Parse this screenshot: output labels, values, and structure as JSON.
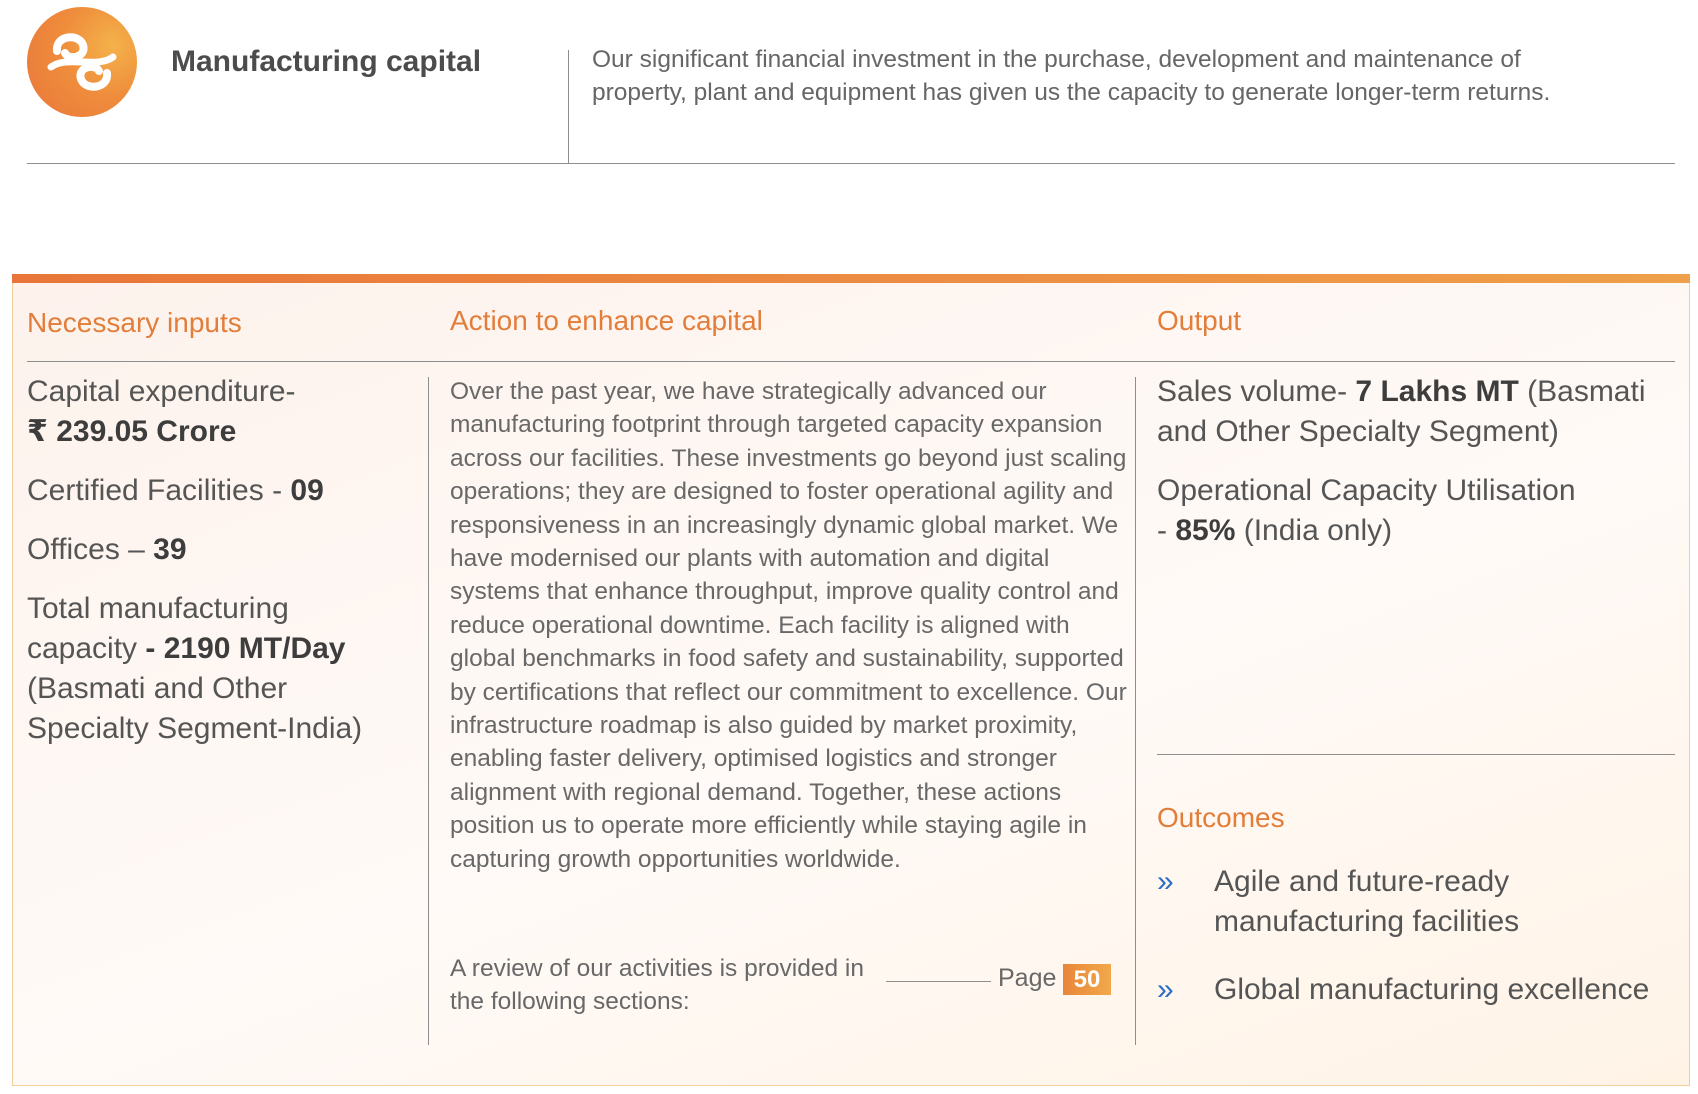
{
  "header": {
    "title": "Manufacturing capital",
    "description": "Our significant financial investment in the purchase, development and maintenance of property, plant and equipment has given us the capacity to generate longer-term returns.",
    "logo_icon": "capital-logo-icon"
  },
  "colors": {
    "accent": "#e27d3a",
    "accent_light": "#f2a84a",
    "bullet": "#2d6fc4"
  },
  "columns": {
    "inputs_heading": "Necessary inputs",
    "action_heading": "Action to enhance capital",
    "output_heading": "Output",
    "outcomes_heading": "Outcomes"
  },
  "inputs": {
    "capex_label": "Capital expenditure-",
    "capex_value": "₹ 239.05 Crore",
    "certified_label": "Certified Facilities - ",
    "certified_value": "09",
    "offices_label": "Offices – ",
    "offices_value": "39",
    "capacity_label": "Total manufacturing capacity ",
    "capacity_value": "- 2190 MT/Day",
    "capacity_note": "(Basmati and Other Specialty Segment-India)"
  },
  "action": {
    "body": "Over the past year, we have strategically advanced our manufacturing footprint through targeted capacity expansion across our facilities. These investments go beyond just scaling operations; they are designed to foster operational agility and responsiveness in an increasingly dynamic global market. We have modernised our plants with automation and digital systems that enhance throughput, improve quality control and reduce operational downtime. Each facility is aligned with global benchmarks in food safety and sustainability, supported by certifications that reflect our commitment to excellence. Our infrastructure roadmap is also guided by market proximity, enabling faster delivery, optimised logistics and stronger alignment with regional demand. Together, these actions position us to operate more efficiently while staying agile in capturing growth opportunities worldwide.",
    "review_text": "A review of our activities is provided in the following sections:",
    "page_label": "Page",
    "page_number": "50"
  },
  "output": {
    "sales_label": "Sales volume- ",
    "sales_value": "7 Lakhs MT",
    "sales_note": " (Basmati and Other Specialty Segment)",
    "util_label": "Operational Capacity Utilisation",
    "util_prefix": "- ",
    "util_value": "85%",
    "util_note": " (India only)"
  },
  "outcomes": [
    {
      "bullet": "»",
      "text": "Agile and future-ready manufacturing facilities"
    },
    {
      "bullet": "»",
      "text": "Global manufacturing excellence"
    }
  ]
}
